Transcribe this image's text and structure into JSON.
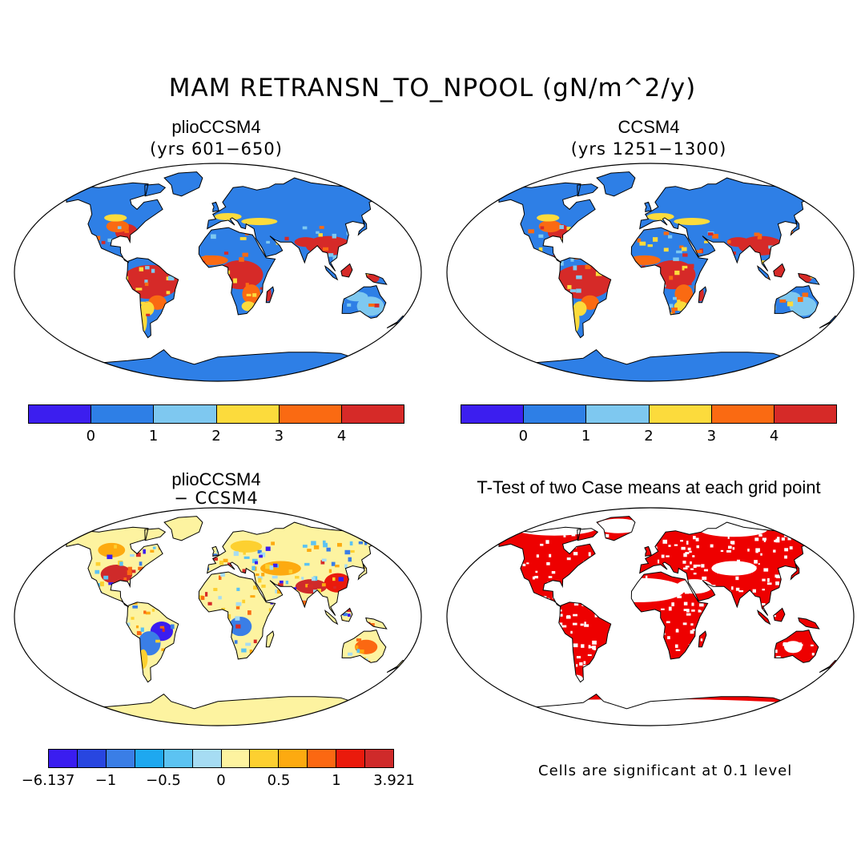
{
  "title": "MAM RETRANSN_TO_NPOOL (gN/m^2/y)",
  "panels": {
    "tl": {
      "title": "plioCCSM4",
      "subtitle": "(yrs 601−650)"
    },
    "tr": {
      "title": "CCSM4",
      "subtitle": "(yrs 1251−1300)"
    },
    "bl": {
      "title": "plioCCSM4",
      "subtitle": "− CCSM4"
    },
    "br": {
      "title": "T-Test of two Case means at each grid point"
    }
  },
  "colorbar_top": {
    "colors": [
      "#3c1eef",
      "#2e7fe6",
      "#7ec8f0",
      "#fcdb3c",
      "#fa6a12",
      "#d62a28"
    ],
    "ticks": [
      "0",
      "1",
      "2",
      "3",
      "4"
    ]
  },
  "colorbar_diff": {
    "colors": [
      "#3a1df0",
      "#2846e0",
      "#3a7ee6",
      "#1ea8f0",
      "#5cc3f2",
      "#a6dcf3",
      "#fdf3a0",
      "#fdd030",
      "#fdaa10",
      "#fb6812",
      "#ea1a0c",
      "#cf2a2a"
    ],
    "ticks": [
      "−6.137",
      "−1",
      "−0.5",
      "0",
      "0.5",
      "1",
      "3.921"
    ]
  },
  "note": "Cells are significant at 0.1 level",
  "map_colors": {
    "ocean": "#ffffff",
    "land_base": "#2e7fe6",
    "hot": "#d62a28",
    "warm": "#fa6a12",
    "mid": "#fcdb3c",
    "light": "#7ec8f0",
    "diff_base": "#fdf3a0",
    "sig": "#ee0000"
  }
}
